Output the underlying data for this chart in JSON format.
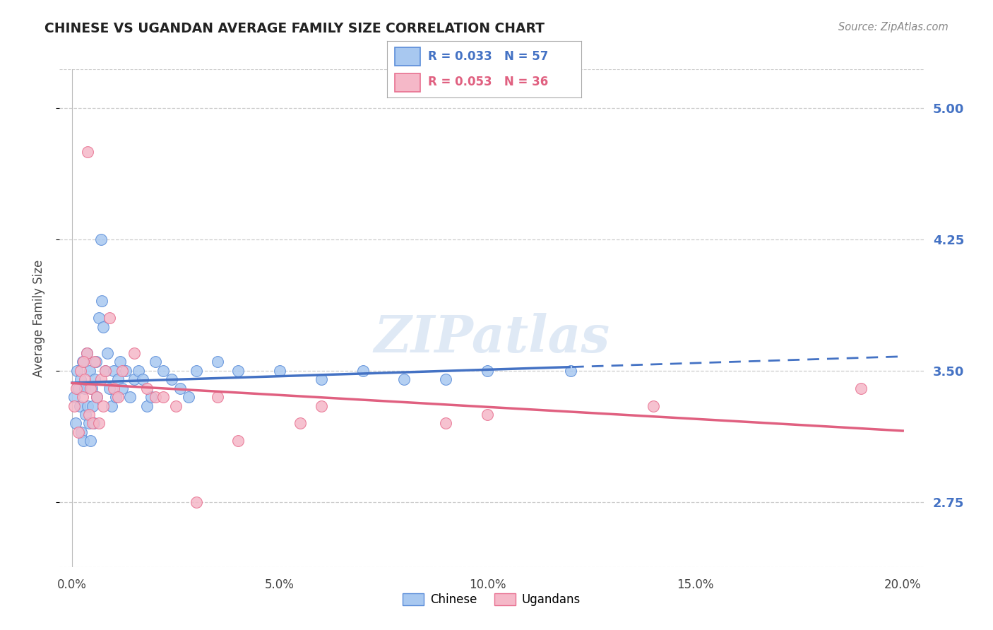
{
  "title": "CHINESE VS UGANDAN AVERAGE FAMILY SIZE CORRELATION CHART",
  "source": "Source: ZipAtlas.com",
  "ylabel": "Average Family Size",
  "xlabel_ticks": [
    "0.0%",
    "5.0%",
    "10.0%",
    "15.0%",
    "20.0%"
  ],
  "xlabel_vals": [
    0.0,
    5.0,
    10.0,
    15.0,
    20.0
  ],
  "xlim": [
    -0.3,
    20.5
  ],
  "ylim": [
    2.38,
    5.22
  ],
  "yticks": [
    2.75,
    3.5,
    4.25,
    5.0
  ],
  "ytick_labels": [
    "2.75",
    "3.50",
    "4.25",
    "5.00"
  ],
  "chinese_color": "#A8C8F0",
  "ugandan_color": "#F5B8C8",
  "chinese_edge_color": "#5B8DD9",
  "ugandan_edge_color": "#E87090",
  "chinese_line_color": "#4472C4",
  "ugandan_line_color": "#E06080",
  "legend_label_chinese": "R = 0.033   N = 57",
  "legend_label_ugandan": "R = 0.053   N = 36",
  "legend_label_bottom_chinese": "Chinese",
  "legend_label_bottom_ugandan": "Ugandans",
  "background_color": "#FFFFFF",
  "grid_color": "#CCCCCC",
  "chinese_x": [
    0.05,
    0.08,
    0.12,
    0.15,
    0.18,
    0.2,
    0.22,
    0.25,
    0.28,
    0.3,
    0.32,
    0.35,
    0.38,
    0.4,
    0.42,
    0.45,
    0.48,
    0.5,
    0.52,
    0.55,
    0.58,
    0.6,
    0.65,
    0.7,
    0.72,
    0.75,
    0.8,
    0.85,
    0.9,
    0.95,
    1.0,
    1.05,
    1.1,
    1.15,
    1.2,
    1.3,
    1.4,
    1.5,
    1.6,
    1.7,
    1.8,
    1.9,
    2.0,
    2.2,
    2.4,
    2.6,
    2.8,
    3.0,
    3.5,
    4.0,
    5.0,
    6.0,
    7.0,
    8.0,
    9.0,
    10.0,
    12.0
  ],
  "chinese_y": [
    3.35,
    3.2,
    3.5,
    3.4,
    3.3,
    3.45,
    3.15,
    3.55,
    3.1,
    3.4,
    3.25,
    3.6,
    3.3,
    3.2,
    3.5,
    3.1,
    3.4,
    3.3,
    3.2,
    3.45,
    3.55,
    3.35,
    3.8,
    4.25,
    3.9,
    3.75,
    3.5,
    3.6,
    3.4,
    3.3,
    3.5,
    3.35,
    3.45,
    3.55,
    3.4,
    3.5,
    3.35,
    3.45,
    3.5,
    3.45,
    3.3,
    3.35,
    3.55,
    3.5,
    3.45,
    3.4,
    3.35,
    3.5,
    3.55,
    3.5,
    3.5,
    3.45,
    3.5,
    3.45,
    3.45,
    3.5,
    3.5
  ],
  "ugandan_x": [
    0.05,
    0.1,
    0.15,
    0.2,
    0.25,
    0.3,
    0.35,
    0.4,
    0.45,
    0.5,
    0.55,
    0.6,
    0.65,
    0.7,
    0.75,
    0.8,
    0.9,
    1.0,
    1.1,
    1.2,
    1.5,
    1.8,
    2.0,
    2.5,
    3.0,
    3.5,
    4.0,
    5.5,
    6.0,
    9.0,
    10.0,
    14.0,
    19.0,
    2.2,
    0.38,
    0.28
  ],
  "ugandan_y": [
    3.3,
    3.4,
    3.15,
    3.5,
    3.35,
    3.45,
    3.6,
    3.25,
    3.4,
    3.2,
    3.55,
    3.35,
    3.2,
    3.45,
    3.3,
    3.5,
    3.8,
    3.4,
    3.35,
    3.5,
    3.6,
    3.4,
    3.35,
    3.3,
    2.75,
    3.35,
    3.1,
    3.2,
    3.3,
    3.2,
    3.25,
    3.3,
    3.4,
    3.35,
    4.75,
    3.55
  ]
}
